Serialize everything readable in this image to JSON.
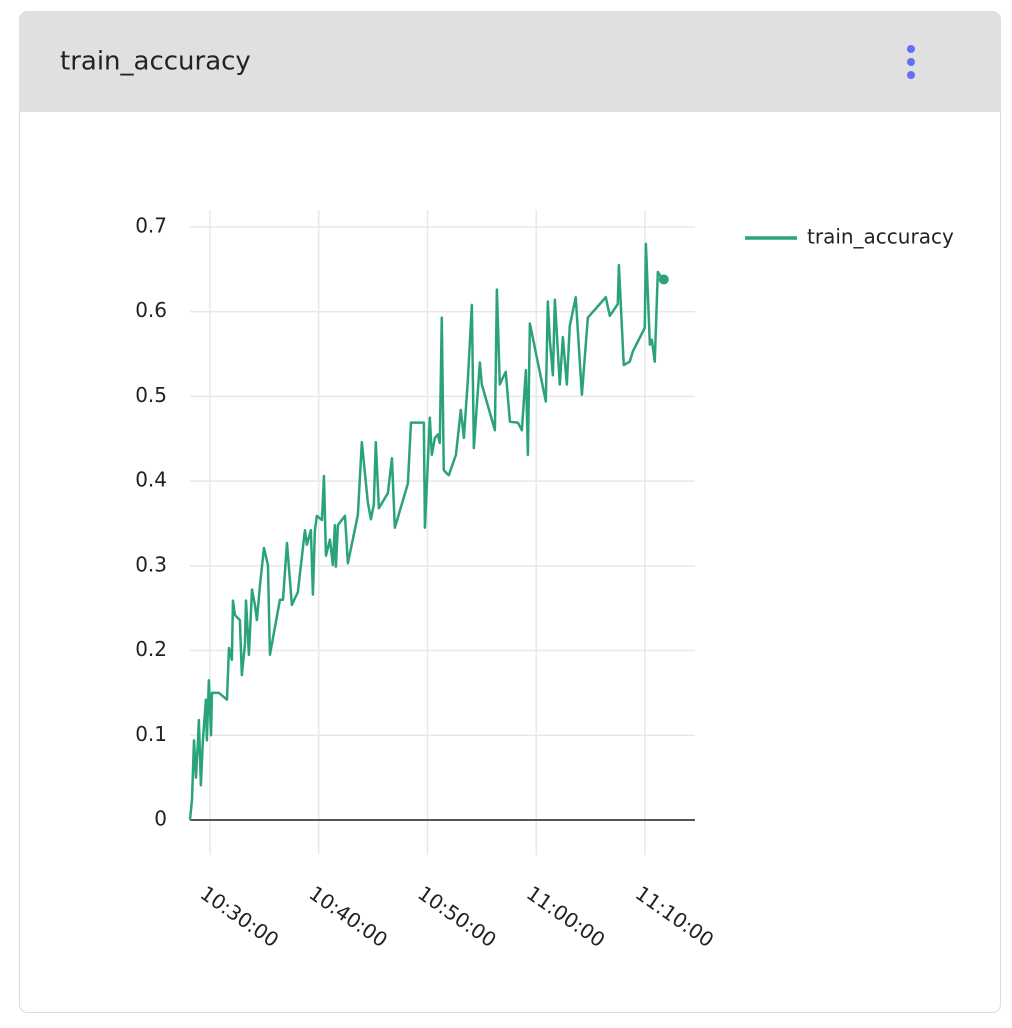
{
  "chart_data": {
    "type": "line",
    "title": "train_accuracy",
    "x": [
      "10:28:10",
      "10:28:21",
      "10:28:32",
      "10:28:43",
      "10:28:54",
      "10:28:59",
      "10:29:10",
      "10:29:21",
      "10:29:38",
      "10:29:43",
      "10:29:54",
      "10:30:06",
      "10:30:11",
      "10:30:50",
      "10:31:34",
      "10:31:45",
      "10:32:01",
      "10:32:07",
      "10:32:18",
      "10:32:45",
      "10:32:56",
      "10:33:13",
      "10:33:19",
      "10:33:35",
      "10:33:52",
      "10:34:08",
      "10:34:19",
      "10:34:36",
      "10:34:58",
      "10:35:20",
      "10:35:31",
      "10:36:26",
      "10:36:43",
      "10:37:05",
      "10:37:32",
      "10:38:05",
      "10:38:44",
      "10:38:55",
      "10:39:17",
      "10:39:28",
      "10:39:39",
      "10:39:50",
      "10:40:18",
      "10:40:29",
      "10:40:40",
      "10:41:02",
      "10:41:18",
      "10:41:29",
      "10:41:35",
      "10:41:46",
      "10:42:25",
      "10:42:41",
      "10:43:36",
      "10:43:58",
      "10:44:31",
      "10:44:48",
      "10:45:04",
      "10:45:15",
      "10:45:32",
      "10:46:22",
      "10:46:44",
      "10:47:00",
      "10:48:12",
      "10:48:29",
      "10:49:40",
      "10:49:46",
      "10:50:13",
      "10:50:24",
      "10:50:41",
      "10:50:57",
      "10:51:08",
      "10:51:19",
      "10:51:30",
      "10:51:47",
      "10:51:58",
      "10:52:37",
      "10:53:04",
      "10:53:21",
      "10:53:43",
      "10:54:05",
      "10:54:16",
      "10:54:49",
      "10:55:00",
      "10:56:12",
      "10:56:23",
      "10:56:39",
      "10:56:56",
      "10:57:12",
      "10:57:35",
      "10:58:19",
      "10:58:41",
      "10:59:03",
      "10:59:14",
      "10:59:25",
      "11:00:53",
      "11:01:04",
      "11:01:15",
      "11:01:32",
      "11:01:43",
      "11:02:10",
      "11:02:27",
      "11:02:49",
      "11:03:05",
      "11:03:38",
      "11:04:12",
      "11:04:45",
      "11:06:24",
      "11:06:46",
      "11:07:30",
      "11:07:36",
      "11:08:03",
      "11:08:36",
      "11:08:53",
      "11:09:59",
      "11:10:05",
      "11:10:27",
      "11:10:38",
      "11:10:54",
      "11:11:11",
      "11:11:22",
      "11:11:44"
    ],
    "series": [
      {
        "name": "train_accuracy",
        "color": "#2ba37a",
        "values": [
          0,
          0.024,
          0.094,
          0.05,
          0.094,
          0.118,
          0.041,
          0.094,
          0.142,
          0.094,
          0.165,
          0.1,
          0.15,
          0.15,
          0.142,
          0.203,
          0.189,
          0.259,
          0.242,
          0.236,
          0.171,
          0.207,
          0.259,
          0.195,
          0.272,
          0.254,
          0.236,
          0.277,
          0.321,
          0.301,
          0.195,
          0.26,
          0.26,
          0.327,
          0.254,
          0.269,
          0.342,
          0.325,
          0.342,
          0.266,
          0.342,
          0.359,
          0.354,
          0.406,
          0.312,
          0.331,
          0.301,
          0.348,
          0.299,
          0.348,
          0.359,
          0.303,
          0.36,
          0.446,
          0.375,
          0.355,
          0.372,
          0.446,
          0.368,
          0.386,
          0.427,
          0.345,
          0.397,
          0.469,
          0.469,
          0.345,
          0.475,
          0.431,
          0.451,
          0.455,
          0.445,
          0.593,
          0.413,
          0.409,
          0.407,
          0.431,
          0.484,
          0.451,
          0.52,
          0.608,
          0.439,
          0.54,
          0.514,
          0.46,
          0.626,
          0.514,
          0.522,
          0.529,
          0.47,
          0.469,
          0.46,
          0.531,
          0.431,
          0.586,
          0.494,
          0.612,
          0.567,
          0.525,
          0.614,
          0.514,
          0.57,
          0.514,
          0.583,
          0.617,
          0.502,
          0.593,
          0.617,
          0.595,
          0.609,
          0.655,
          0.537,
          0.541,
          0.553,
          0.581,
          0.68,
          0.561,
          0.567,
          0.541,
          0.647,
          0.643,
          0.638
        ]
      }
    ],
    "xlim": [
      "10:28:10",
      "11:14:36"
    ],
    "xticks": [
      "10:30:00",
      "10:40:00",
      "10:50:00",
      "11:00:00",
      "11:10:00"
    ],
    "ylim": [
      0,
      0.72
    ],
    "yticks": [
      0,
      0.1,
      0.2,
      0.3,
      0.4,
      0.5,
      0.6,
      0.7
    ],
    "grid": true,
    "legend": "right"
  }
}
